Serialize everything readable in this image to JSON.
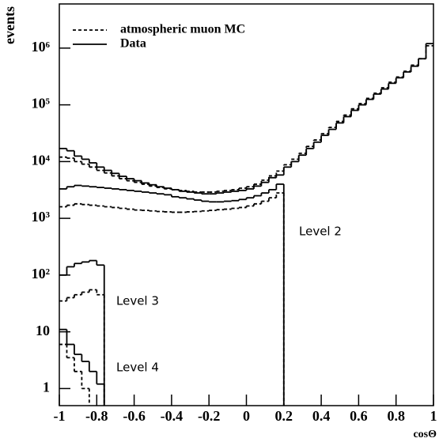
{
  "chart_data": {
    "type": "histogram",
    "xlabel": "cosΘ",
    "ylabel": "events",
    "log_y": true,
    "xlim": [
      -1,
      1
    ],
    "ylim": [
      0.5,
      6000000
    ],
    "xticks": [
      -1,
      -0.8,
      -0.6,
      -0.4,
      -0.2,
      0,
      0.2,
      0.4,
      0.6,
      0.8,
      1
    ],
    "yticks": [
      1,
      10,
      {
        "value": 100,
        "label": "10²"
      },
      {
        "value": 1000,
        "label": "10³"
      },
      {
        "value": 10000,
        "label": "10⁴"
      },
      {
        "value": 100000,
        "label": "10⁵"
      },
      {
        "value": 1000000,
        "label": "10⁶"
      }
    ],
    "legend_position": "upper left",
    "legend": [
      {
        "name": "atmospheric muon MC",
        "dashed": true
      },
      {
        "name": "Data",
        "dashed": false
      }
    ],
    "bins": [
      -1,
      -0.96,
      -0.92,
      -0.88,
      -0.84,
      -0.8,
      -0.76,
      -0.72,
      -0.68,
      -0.64,
      -0.6,
      -0.56,
      -0.52,
      -0.48,
      -0.44,
      -0.4,
      -0.36,
      -0.32,
      -0.28,
      -0.24,
      -0.2,
      -0.16,
      -0.12,
      -0.08,
      -0.04,
      0,
      0.04,
      0.08,
      0.12,
      0.16,
      0.2,
      0.24,
      0.28,
      0.32,
      0.36,
      0.4,
      0.44,
      0.48,
      0.52,
      0.56,
      0.6,
      0.64,
      0.68,
      0.72,
      0.76,
      0.8,
      0.84,
      0.88,
      0.92,
      0.96,
      1
    ],
    "series": [
      {
        "color": "#000000",
        "dashed": false,
        "values": [
          17000,
          15500,
          12500,
          11000,
          9500,
          8000,
          7000,
          6200,
          5500,
          5000,
          4600,
          4200,
          3900,
          3600,
          3400,
          3200,
          3000,
          2900,
          2800,
          2700,
          2700,
          2800,
          2900,
          3000,
          3100,
          3300,
          3700,
          4300,
          5200,
          5800,
          8000,
          10000,
          13000,
          17000,
          22000,
          29000,
          37000,
          48000,
          62000,
          80000,
          100000,
          125000,
          155000,
          190000,
          240000,
          300000,
          380000,
          480000,
          650000,
          1200000
        ]
      },
      {
        "color": "#000000",
        "dashed": true,
        "values": [
          12000,
          11500,
          10000,
          9000,
          8000,
          7000,
          6300,
          5600,
          5000,
          4600,
          4300,
          4000,
          3700,
          3500,
          3300,
          3200,
          3100,
          3000,
          2900,
          2900,
          2900,
          3000,
          3100,
          3200,
          3400,
          3600,
          4000,
          4700,
          5600,
          6800,
          8800,
          11000,
          14000,
          18500,
          24000,
          31000,
          40000,
          51000,
          66000,
          85000,
          105000,
          130000,
          160000,
          200000,
          250000,
          310000,
          390000,
          500000,
          650000,
          1100000
        ]
      },
      {
        "color": "#000000",
        "dashed": false,
        "level": "Level 2",
        "values": [
          3300,
          3600,
          3800,
          3700,
          3600,
          3500,
          3400,
          3300,
          3200,
          3100,
          3000,
          2900,
          2800,
          2700,
          2600,
          2400,
          2300,
          2200,
          2100,
          2000,
          1950,
          1950,
          2000,
          2050,
          2150,
          2300,
          2500,
          2800,
          3200,
          4000,
          null,
          null,
          null,
          null,
          null,
          null,
          null,
          null,
          null,
          null,
          null,
          null,
          null,
          null,
          null,
          null,
          null,
          null,
          null,
          null
        ]
      },
      {
        "color": "#000000",
        "dashed": true,
        "values": [
          1600,
          1700,
          1800,
          1750,
          1700,
          1650,
          1600,
          1550,
          1500,
          1450,
          1400,
          1380,
          1350,
          1320,
          1300,
          1280,
          1280,
          1300,
          1320,
          1350,
          1380,
          1420,
          1450,
          1500,
          1550,
          1650,
          1800,
          2000,
          2300,
          2800,
          null,
          null,
          null,
          null,
          null,
          null,
          null,
          null,
          null,
          null,
          null,
          null,
          null,
          null,
          null,
          null,
          null,
          null,
          null,
          null
        ]
      },
      {
        "color": "#000000",
        "dashed": false,
        "level": "Level 3",
        "values": [
          100,
          140,
          160,
          170,
          180,
          150,
          null,
          null,
          null,
          null,
          null,
          null,
          null,
          null,
          null,
          null,
          null,
          null,
          null,
          null,
          null,
          null,
          null,
          null,
          null,
          null,
          null,
          null,
          null,
          null,
          null,
          null,
          null,
          null,
          null,
          null,
          null,
          null,
          null,
          null,
          null,
          null,
          null,
          null,
          null,
          null,
          null,
          null,
          null,
          null
        ]
      },
      {
        "color": "#000000",
        "dashed": true,
        "values": [
          35,
          40,
          45,
          50,
          55,
          45,
          null,
          null,
          null,
          null,
          null,
          null,
          null,
          null,
          null,
          null,
          null,
          null,
          null,
          null,
          null,
          null,
          null,
          null,
          null,
          null,
          null,
          null,
          null,
          null,
          null,
          null,
          null,
          null,
          null,
          null,
          null,
          null,
          null,
          null,
          null,
          null,
          null,
          null,
          null,
          null,
          null,
          null,
          null,
          null
        ]
      },
      {
        "color": "#000000",
        "dashed": false,
        "level": "Level 4",
        "values": [
          11,
          6,
          4,
          3,
          2,
          1.2,
          null,
          null,
          null,
          null,
          null,
          null,
          null,
          null,
          null,
          null,
          null,
          null,
          null,
          null,
          null,
          null,
          null,
          null,
          null,
          null,
          null,
          null,
          null,
          null,
          null,
          null,
          null,
          null,
          null,
          null,
          null,
          null,
          null,
          null,
          null,
          null,
          null,
          null,
          null,
          null,
          null,
          null,
          null,
          null
        ]
      },
      {
        "color": "#000000",
        "dashed": true,
        "values": [
          6,
          3.5,
          2,
          1,
          null,
          null,
          null,
          null,
          null,
          null,
          null,
          null,
          null,
          null,
          null,
          null,
          null,
          null,
          null,
          null,
          null,
          null,
          null,
          null,
          null,
          null,
          null,
          null,
          null,
          null,
          null,
          null,
          null,
          null,
          null,
          null,
          null,
          null,
          null,
          null,
          null,
          null,
          null,
          null,
          null,
          null,
          null,
          null,
          null,
          null
        ]
      }
    ]
  }
}
